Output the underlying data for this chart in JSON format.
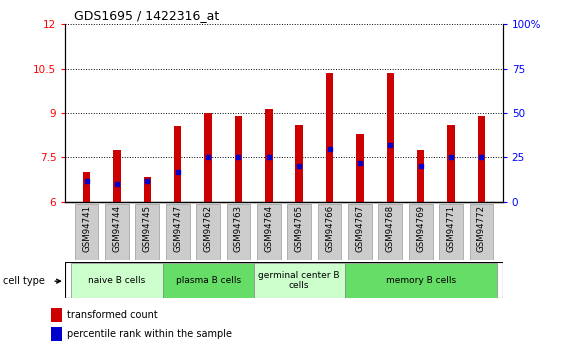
{
  "title": "GDS1695 / 1422316_at",
  "samples": [
    "GSM94741",
    "GSM94744",
    "GSM94745",
    "GSM94747",
    "GSM94762",
    "GSM94763",
    "GSM94764",
    "GSM94765",
    "GSM94766",
    "GSM94767",
    "GSM94768",
    "GSM94769",
    "GSM94771",
    "GSM94772"
  ],
  "transformed_count": [
    7.0,
    7.75,
    6.85,
    8.55,
    9.0,
    8.9,
    9.15,
    8.6,
    10.35,
    8.3,
    10.35,
    7.75,
    8.6,
    8.9
  ],
  "percentile_rank": [
    12,
    10,
    12,
    17,
    25,
    25,
    25,
    20,
    30,
    22,
    32,
    20,
    25,
    25
  ],
  "bar_color": "#cc0000",
  "dot_color": "#0000cc",
  "ylim_left": [
    6,
    12
  ],
  "ylim_right": [
    0,
    100
  ],
  "yticks_left": [
    6,
    7.5,
    9,
    10.5,
    12
  ],
  "yticks_right": [
    0,
    25,
    50,
    75,
    100
  ],
  "ytick_labels_right": [
    "0",
    "25",
    "50",
    "75",
    "100%"
  ],
  "ytick_labels_left": [
    "6",
    "7.5",
    "9",
    "10.5",
    "12"
  ],
  "cell_groups": [
    {
      "label": "naive B cells",
      "start": 0,
      "end": 2,
      "color": "#ccffcc"
    },
    {
      "label": "plasma B cells",
      "start": 3,
      "end": 5,
      "color": "#66dd66"
    },
    {
      "label": "germinal center B\ncells",
      "start": 6,
      "end": 8,
      "color": "#ccffcc"
    },
    {
      "label": "memory B cells",
      "start": 9,
      "end": 13,
      "color": "#66dd66"
    }
  ],
  "cell_type_label": "cell type",
  "legend_red_label": "transformed count",
  "legend_blue_label": "percentile rank within the sample",
  "bar_width": 0.25,
  "baseline": 6.0,
  "tick_bg_color": "#cccccc",
  "plot_bg_color": "#ffffff"
}
